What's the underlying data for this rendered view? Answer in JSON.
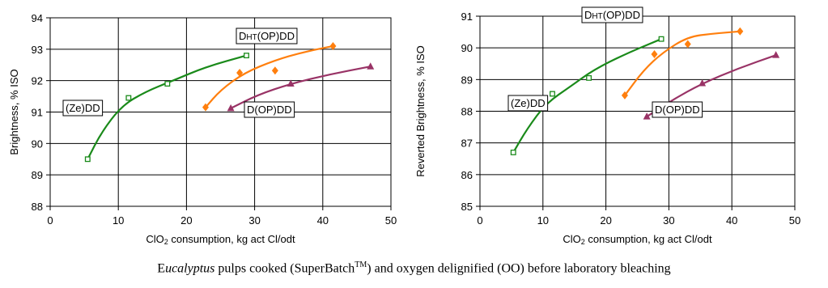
{
  "chart_data": [
    {
      "type": "scatter",
      "ylabel": "Brightness, % ISO",
      "xlabel_parts": [
        "ClO",
        "2",
        " consumption, kg act Cl/odt"
      ],
      "xlim": [
        0,
        50
      ],
      "ylim": [
        88,
        94
      ],
      "xticks": [
        0,
        10,
        20,
        30,
        40,
        50
      ],
      "yticks": [
        88,
        89,
        90,
        91,
        92,
        93,
        94
      ],
      "series": [
        {
          "label": "(Ze)DD",
          "color": "#1a8a1a",
          "marker": "square",
          "points": [
            [
              5.5,
              89.5
            ],
            [
              11.5,
              91.45
            ],
            [
              17.2,
              91.9
            ],
            [
              28.8,
              92.8
            ]
          ],
          "curve": [
            [
              5.5,
              89.5
            ],
            [
              7.5,
              90.35
            ],
            [
              10.5,
              91.2
            ],
            [
              14,
              91.65
            ],
            [
              18,
              92.0
            ],
            [
              23,
              92.45
            ],
            [
              28.8,
              92.8
            ]
          ]
        },
        {
          "label_parts": [
            "D",
            "HT",
            "(OP)DD"
          ],
          "color": "#ff7f0e",
          "marker": "diamond",
          "points": [
            [
              22.8,
              91.15
            ],
            [
              27.8,
              92.25
            ],
            [
              33,
              92.32
            ],
            [
              41.5,
              93.1
            ]
          ],
          "curve": [
            [
              22.8,
              91.15
            ],
            [
              25,
              91.7
            ],
            [
              28.5,
              92.25
            ],
            [
              33,
              92.65
            ],
            [
              37,
              92.9
            ],
            [
              41.5,
              93.1
            ]
          ]
        },
        {
          "label": "D(OP)DD",
          "color": "#993366",
          "marker": "triangle",
          "points": [
            [
              26.5,
              91.12
            ],
            [
              35.3,
              91.9
            ],
            [
              47,
              92.45
            ]
          ],
          "curve": [
            [
              26.5,
              91.12
            ],
            [
              30.5,
              91.55
            ],
            [
              35.3,
              91.9
            ],
            [
              41,
              92.2
            ],
            [
              47,
              92.45
            ]
          ]
        }
      ]
    },
    {
      "type": "scatter",
      "ylabel": "Reverted Brightness, % ISO",
      "xlabel_parts": [
        "ClO",
        "2",
        " consumption, kg act Cl/odt"
      ],
      "xlim": [
        0,
        50
      ],
      "ylim": [
        85,
        91
      ],
      "xticks": [
        0,
        10,
        20,
        30,
        40,
        50
      ],
      "yticks": [
        85,
        86,
        87,
        88,
        89,
        90,
        91
      ],
      "series": [
        {
          "label": "(Ze)DD",
          "color": "#1a8a1a",
          "marker": "square",
          "points": [
            [
              5.3,
              86.7
            ],
            [
              11.5,
              88.55
            ],
            [
              17.3,
              89.05
            ],
            [
              28.8,
              90.28
            ]
          ],
          "curve": [
            [
              5.3,
              86.7
            ],
            [
              7.5,
              87.45
            ],
            [
              10.5,
              88.25
            ],
            [
              14.5,
              88.8
            ],
            [
              18,
              89.3
            ],
            [
              23,
              89.8
            ],
            [
              28.8,
              90.28
            ]
          ]
        },
        {
          "label_parts": [
            "D",
            "HT",
            "(OP)DD"
          ],
          "color": "#ff7f0e",
          "marker": "diamond",
          "points": [
            [
              23,
              88.5
            ],
            [
              27.7,
              89.8
            ],
            [
              33,
              90.12
            ],
            [
              41.3,
              90.52
            ]
          ],
          "curve": [
            [
              23,
              88.5
            ],
            [
              26,
              89.3
            ],
            [
              29,
              89.85
            ],
            [
              33,
              90.35
            ],
            [
              37,
              90.45
            ],
            [
              41.3,
              90.52
            ]
          ]
        },
        {
          "label": "D(OP)DD",
          "color": "#993366",
          "marker": "triangle",
          "points": [
            [
              26.5,
              87.83
            ],
            [
              35.3,
              88.88
            ],
            [
              47,
              89.77
            ]
          ],
          "curve": [
            [
              26.5,
              87.83
            ],
            [
              30.5,
              88.35
            ],
            [
              35.3,
              88.88
            ],
            [
              41,
              89.35
            ],
            [
              47,
              89.77
            ]
          ]
        }
      ]
    }
  ],
  "caption": {
    "part1": "E",
    "part2": "ucalyptus",
    "part3": " pulps cooked (SuperBatch",
    "tm": "TM",
    "part4": ")  and oxygen delignified (OO) before laboratory bleaching"
  }
}
